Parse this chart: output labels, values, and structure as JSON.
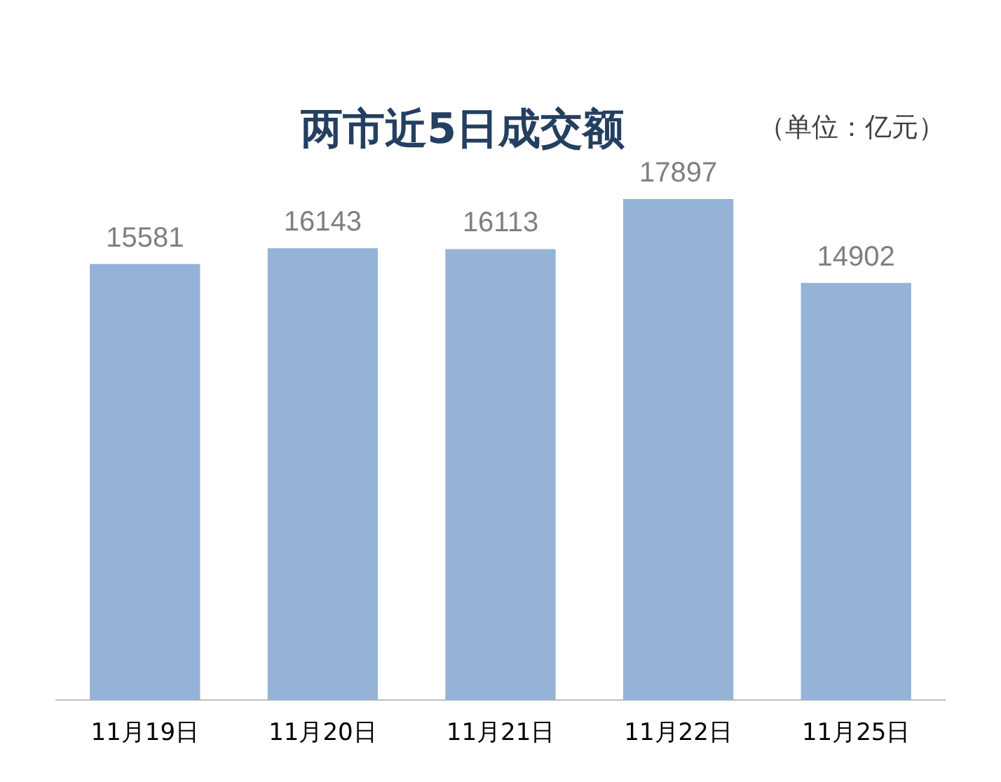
{
  "chart_data": {
    "type": "bar",
    "title": "两市近5日成交额",
    "annotations": [
      "（单位：亿元）"
    ],
    "categories": [
      "11月19日",
      "11月20日",
      "11月21日",
      "11月22日",
      "11月25日"
    ],
    "values": [
      15581,
      16143,
      16113,
      17897,
      14902
    ],
    "color": "#95b3d7",
    "data_labels": true,
    "grid": false,
    "legend": false
  }
}
